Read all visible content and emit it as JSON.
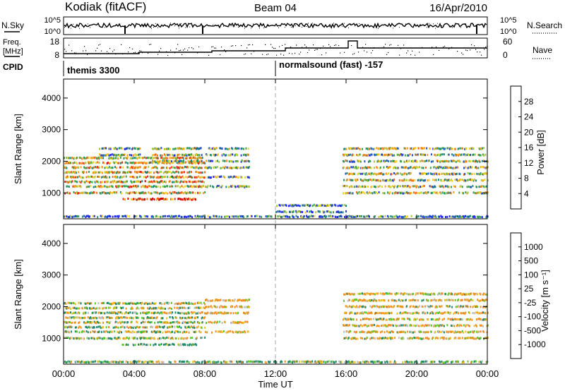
{
  "header": {
    "station": "Kodiak (fitACF)",
    "beam": "Beam 04",
    "date": "16/Apr/2010"
  },
  "strip_labels": {
    "nsky": "N.Sky",
    "nsearch": "N.Search",
    "freq_line1": "Freq.",
    "freq_line2": "[MHz]",
    "nave": "Nave",
    "cpid": "CPID"
  },
  "strip_ticks": {
    "noise_left": [
      "10^5",
      "10^0"
    ],
    "noise_right": [
      "10^5",
      "10^0"
    ],
    "freq_left": [
      "18",
      "8"
    ],
    "nave_right": [
      "60",
      "0"
    ]
  },
  "cpid_segments": [
    {
      "label": "themis 3300",
      "start_hour": 0,
      "end_hour": 12
    },
    {
      "label": "normalsound (fast) -157",
      "start_hour": 12,
      "end_hour": 24
    }
  ],
  "axes": {
    "ylabel": "Slant Range [km]",
    "xlabel": "Time UT",
    "y_ticks": [
      "4000",
      "3000",
      "2000",
      "1000"
    ],
    "x_ticks": [
      "00:00",
      "04:00",
      "08:00",
      "12:00",
      "16:00",
      "20:00",
      "00:00"
    ]
  },
  "colorbars": {
    "power": {
      "label": "Power [dB]",
      "ticks": [
        "28",
        "24",
        "20",
        "16",
        "12",
        "8",
        "4"
      ]
    },
    "velocity": {
      "label": "Velocity [m s⁻¹]",
      "ticks": [
        "1000",
        "500",
        "100",
        "25",
        "-25",
        "-100",
        "-500",
        "-1000"
      ]
    }
  },
  "colors": {
    "power_scale": [
      "#1e28e6",
      "#2a4ad2",
      "#1e8a7a",
      "#3aa04a",
      "#a6c840",
      "#f0d020",
      "#f0a020",
      "#f06a18",
      "#e82818",
      "#d00000"
    ],
    "velocity_scale": [
      "#e80000",
      "#f05018",
      "#f09020",
      "#e8c020",
      "#bebebe",
      "#bebebe",
      "#58c828",
      "#1e8a6a",
      "#2850c8",
      "#1a1ad8"
    ]
  },
  "chart_data": [
    {
      "type": "heatmap",
      "title": "Power",
      "xlabel": "Time UT",
      "ylabel": "Slant Range [km]",
      "xlim": [
        0,
        24
      ],
      "ylim": [
        180,
        4600
      ],
      "color_label": "Power [dB]",
      "color_range": [
        0,
        32
      ],
      "echo_bands": [
        {
          "t_start": 0.0,
          "t_end": 8.0,
          "range_km": [
            1000,
            1200,
            1350,
            1500,
            1650,
            1800,
            1950,
            2100
          ],
          "power_db": 18
        },
        {
          "t_start": 3.3,
          "t_end": 7.5,
          "range_km": [
            800
          ],
          "power_db": 28
        },
        {
          "t_start": 2.0,
          "t_end": 4.3,
          "range_km": [
            2200,
            2400
          ],
          "power_db": 10
        },
        {
          "t_start": 5.0,
          "t_end": 7.8,
          "range_km": [
            2000,
            2200,
            2400
          ],
          "power_db": 14
        },
        {
          "t_start": 8.0,
          "t_end": 10.5,
          "range_km": [
            1200,
            1500,
            1800,
            2000,
            2200,
            2400
          ],
          "power_db": 12
        },
        {
          "t_start": 0.0,
          "t_end": 24.0,
          "range_km": [
            250
          ],
          "power_db": 6
        },
        {
          "t_start": 12.0,
          "t_end": 16.0,
          "range_km": [
            400,
            600
          ],
          "power_db": 8
        },
        {
          "t_start": 15.8,
          "t_end": 24.0,
          "range_km": [
            1000,
            1200,
            1400,
            1600,
            1800,
            2000,
            2200,
            2400
          ],
          "power_db": 14
        }
      ]
    },
    {
      "type": "heatmap",
      "title": "Velocity",
      "xlabel": "Time UT",
      "ylabel": "Slant Range [km]",
      "xlim": [
        0,
        24
      ],
      "ylim": [
        180,
        4600
      ],
      "color_label": "Velocity [m s⁻¹]",
      "color_range": [
        -1200,
        1200
      ],
      "echo_bands": [
        {
          "t_start": 0.0,
          "t_end": 8.0,
          "range_km": [
            1000,
            1200,
            1350,
            1500,
            1650,
            1800,
            1950,
            2100
          ],
          "velocity_ms": 0
        },
        {
          "t_start": 3.3,
          "t_end": 7.5,
          "range_km": [
            800
          ],
          "velocity_ms": 150
        },
        {
          "t_start": 8.0,
          "t_end": 10.5,
          "range_km": [
            1200,
            1500,
            1800,
            2000,
            2200
          ],
          "velocity_ms": -150
        },
        {
          "t_start": 0.0,
          "t_end": 24.0,
          "range_km": [
            250
          ],
          "velocity_ms": 80
        },
        {
          "t_start": 15.8,
          "t_end": 24.0,
          "range_km": [
            1000,
            1200,
            1400,
            1600,
            1800,
            2000,
            2200,
            2400
          ],
          "velocity_ms": -100
        }
      ]
    }
  ]
}
